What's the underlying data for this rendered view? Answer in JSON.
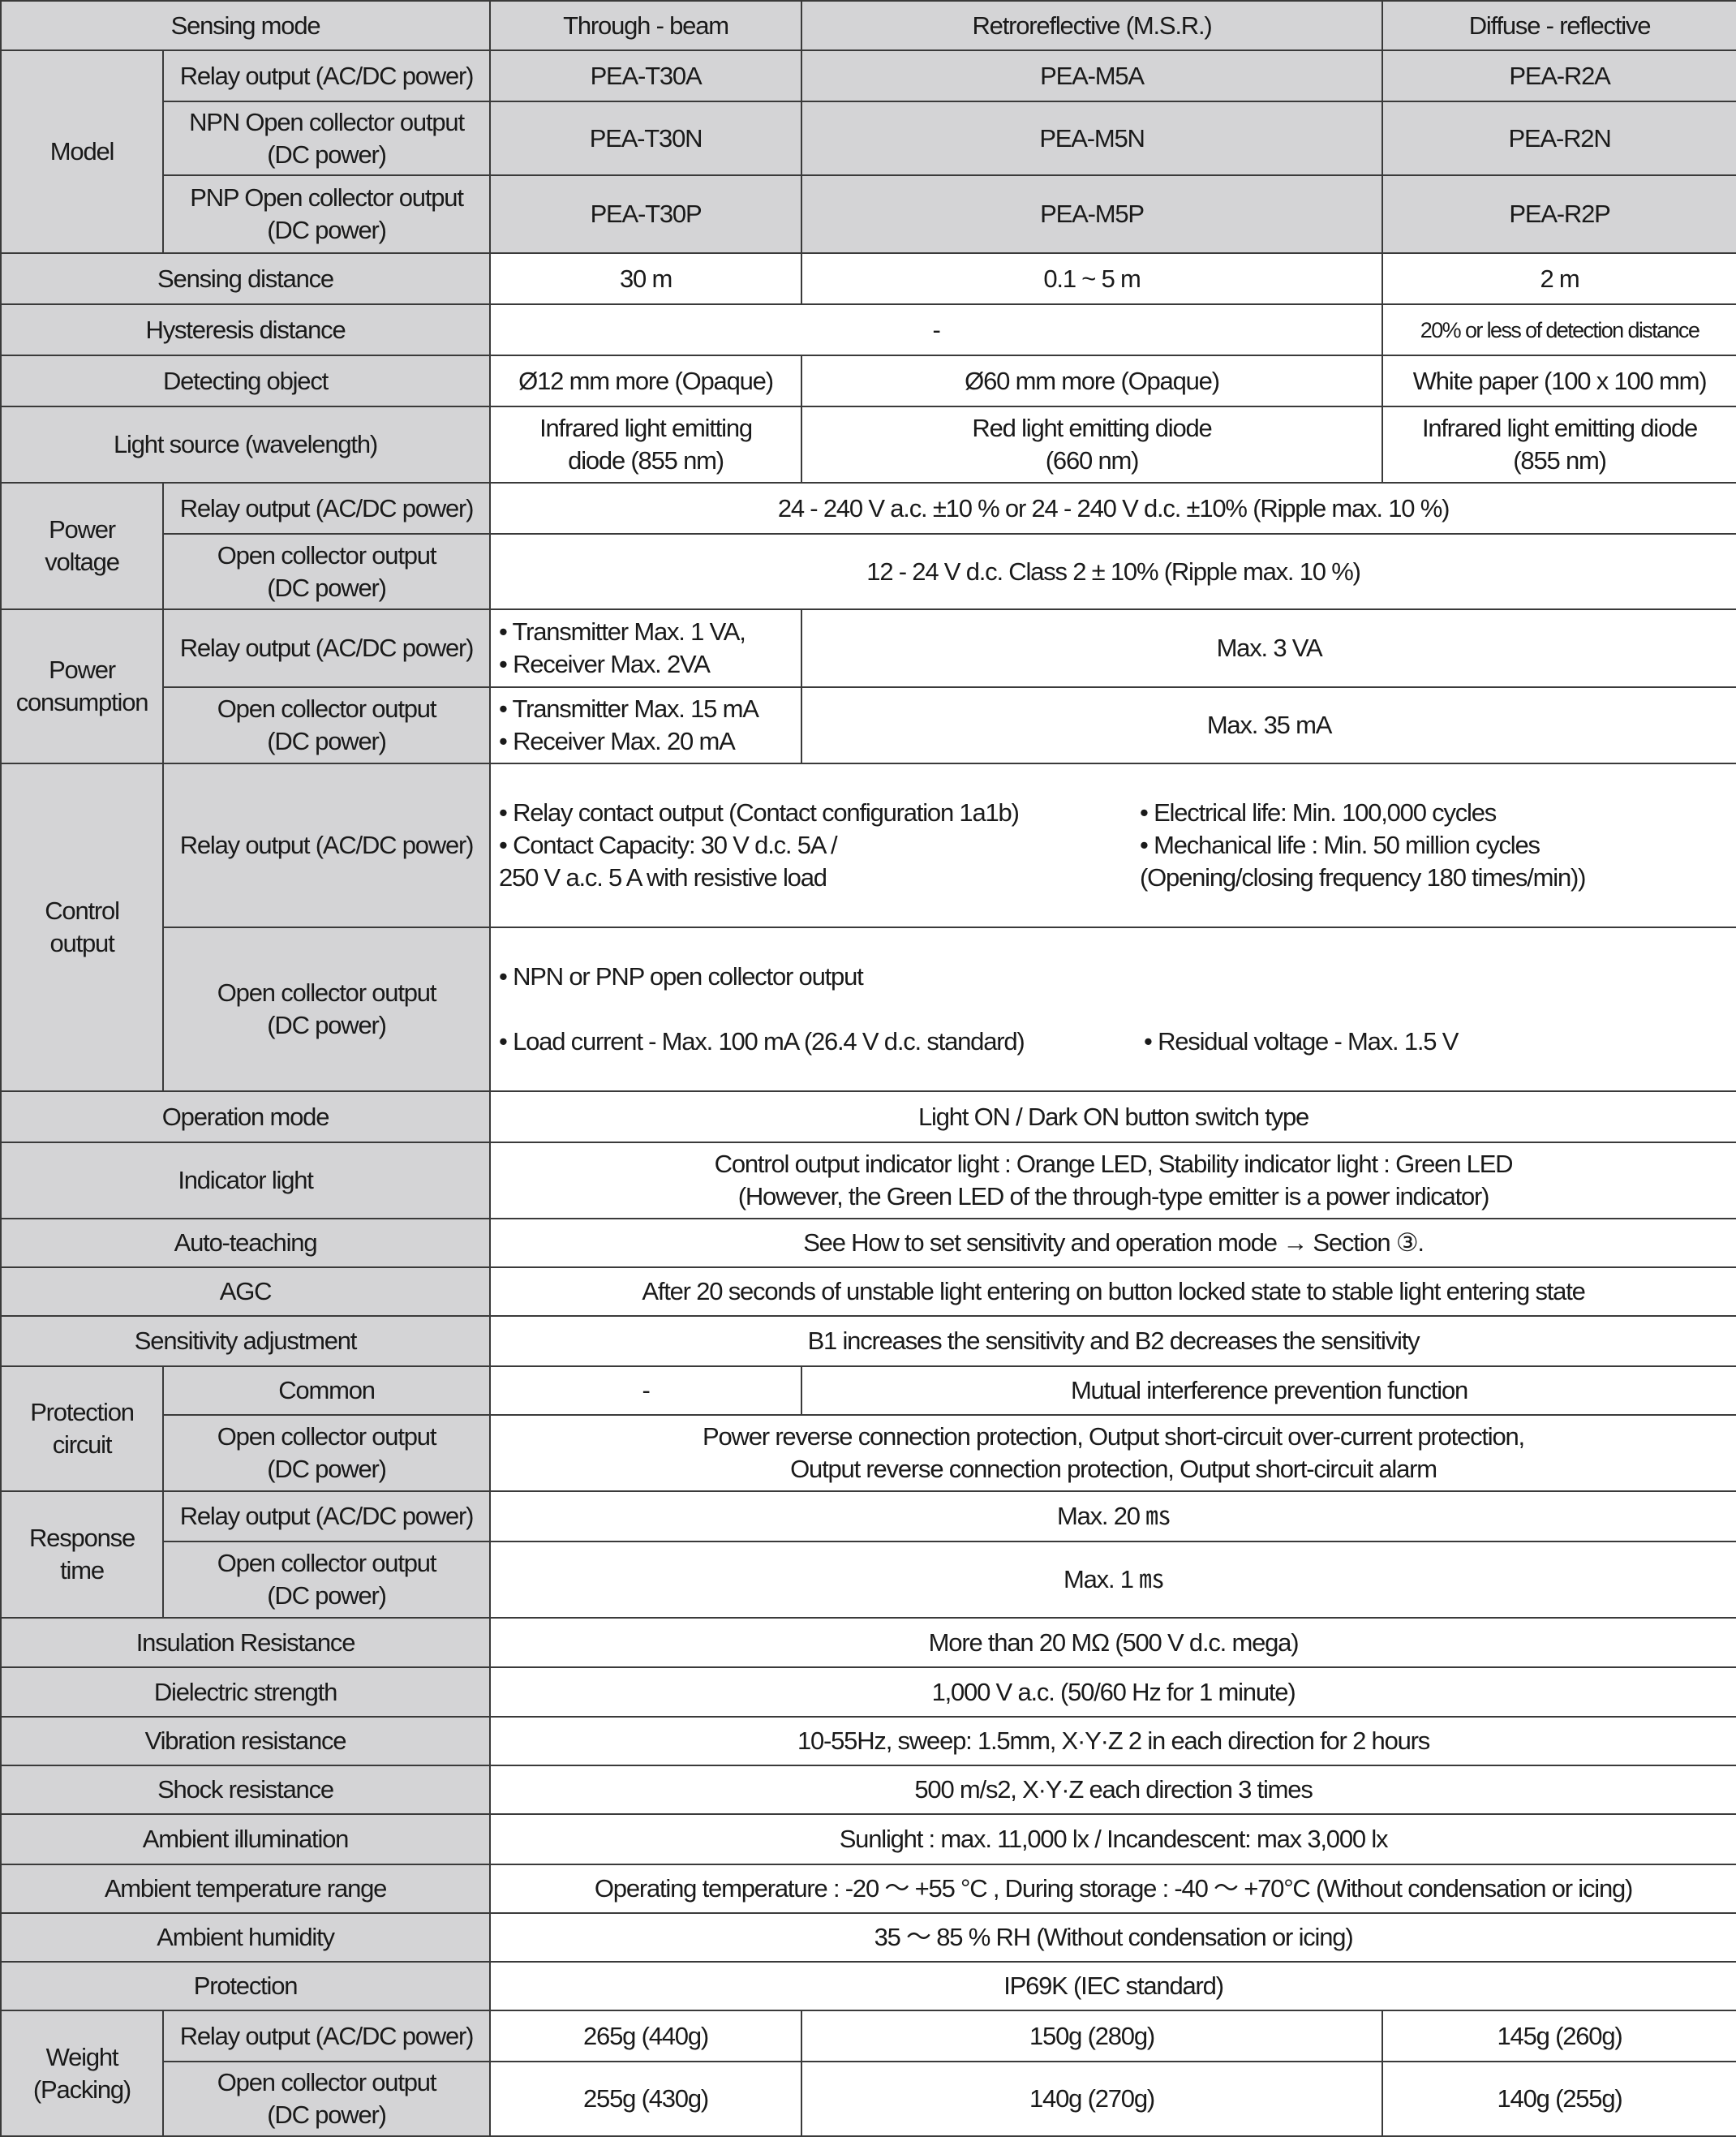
{
  "colors": {
    "label_bg": "#d4d4d6",
    "value_bg": "#ffffff",
    "border": "#3a3a3a"
  },
  "header": {
    "label": "Sensing mode",
    "cols": [
      "Through - beam",
      "Retroreflective (M.S.R.)",
      "Diffuse - reflective"
    ]
  },
  "model": {
    "label": "Model",
    "relay": "Relay output (AC/DC power)",
    "npn": "NPN Open collector output\n(DC power)",
    "pnp": "PNP Open collector output\n(DC power)",
    "relay_vals": [
      "PEA-T30A",
      "PEA-M5A",
      "PEA-R2A"
    ],
    "npn_vals": [
      "PEA-T30N",
      "PEA-M5N",
      "PEA-R2N"
    ],
    "pnp_vals": [
      "PEA-T30P",
      "PEA-M5P",
      "PEA-R2P"
    ]
  },
  "sensing_distance": {
    "label": "Sensing distance",
    "vals": [
      "30 m",
      "0.1 ~ 5 m",
      "2 m"
    ]
  },
  "hysteresis": {
    "label": "Hysteresis distance",
    "val_tb_rr": "-",
    "val_diffuse": "20% or less of detection distance"
  },
  "detecting_object": {
    "label": "Detecting object",
    "vals": [
      "Ø12 mm more (Opaque)",
      "Ø60 mm more (Opaque)",
      "White paper (100 x 100 mm)"
    ]
  },
  "light_source": {
    "label": "Light source (wavelength)",
    "vals": [
      "Infrared light emitting\ndiode (855 nm)",
      "Red light emitting diode\n(660 nm)",
      "Infrared light emitting diode\n(855 nm)"
    ]
  },
  "power_voltage": {
    "label": "Power\nvoltage",
    "relay": "Relay output (AC/DC power)",
    "relay_val": "24 - 240 V a.c. ±10 % or 24 - 240 V d.c. ±10% (Ripple max. 10 %)",
    "oc": "Open collector output\n(DC power)",
    "oc_val": "12 - 24 V d.c. Class 2 ± 10% (Ripple max. 10 %)"
  },
  "power_consumption": {
    "label": "Power\nconsumption",
    "relay": "Relay output (AC/DC power)",
    "relay_tb": "• Transmitter Max. 1 VA,\n• Receiver Max. 2VA",
    "relay_other": "Max. 3 VA",
    "oc": "Open collector output\n(DC power)",
    "oc_tb": "• Transmitter Max. 15 mA\n• Receiver Max. 20 mA",
    "oc_other": "Max. 35 mA"
  },
  "control_output": {
    "label": "Control\noutput",
    "relay": "Relay output (AC/DC power)",
    "relay_left": "• Relay contact output (Contact configuration 1a1b)\n• Contact Capacity: 30 V d.c. 5A /\n  250 V a.c. 5 A with resistive load",
    "relay_right": "• Electrical life: Min. 100,000 cycles\n• Mechanical life : Min. 50 million cycles\n  (Opening/closing frequency 180 times/min))",
    "oc": "Open collector output\n(DC power)",
    "oc_line1": "• NPN or PNP open collector output",
    "oc_left": "• Load current - Max. 100 mA (26.4 V d.c. standard)",
    "oc_right": "• Residual voltage - Max. 1.5 V"
  },
  "operation_mode": {
    "label": "Operation mode",
    "val": "Light ON / Dark ON button switch type"
  },
  "indicator_light": {
    "label": "Indicator light",
    "val": "Control output indicator light : Orange LED, Stability indicator light : Green LED\n(However, the Green LED of the through-type emitter is a power indicator)"
  },
  "auto_teaching": {
    "label": "Auto-teaching",
    "val": "See How to set sensitivity and operation mode → Section ③."
  },
  "agc": {
    "label": "AGC",
    "val": "After 20 seconds of unstable light entering on button locked state to stable light entering state"
  },
  "sensitivity": {
    "label": "Sensitivity adjustment",
    "val": "B1 increases the sensitivity and B2 decreases the sensitivity"
  },
  "protection_circuit": {
    "label": "Protection\ncircuit",
    "common": "Common",
    "common_tb": "-",
    "common_other": "Mutual interference prevention function",
    "oc": "Open collector output\n(DC power)",
    "oc_val": "Power reverse connection protection, Output short-circuit over-current protection,\nOutput reverse connection protection, Output short-circuit alarm"
  },
  "response_time": {
    "label": "Response\ntime",
    "relay": "Relay output (AC/DC power)",
    "relay_val": "Max. 20 ㎳",
    "oc": "Open collector output\n(DC power)",
    "oc_val": "Max. 1 ㎳"
  },
  "insulation": {
    "label": "Insulation Resistance",
    "val": "More than 20 MΩ (500 V d.c. mega)"
  },
  "dielectric": {
    "label": "Dielectric strength",
    "val": "1,000 V a.c. (50/60 Hz for 1 minute)"
  },
  "vibration": {
    "label": "Vibration resistance",
    "val": "10-55Hz, sweep: 1.5mm, X·Y·Z 2 in each direction for 2 hours"
  },
  "shock": {
    "label": "Shock resistance",
    "val": "500 m/s2, X·Y·Z each direction 3 times"
  },
  "illumination": {
    "label": "Ambient illumination",
    "val": "Sunlight : max. 11,000 lx / Incandescent: max 3,000 lx"
  },
  "temperature": {
    "label": "Ambient temperature range",
    "val": "Operating temperature : -20 ～ +55 °C , During storage : -40 ～ +70°C (Without condensation or icing)"
  },
  "humidity": {
    "label": "Ambient humidity",
    "val": "35 ～ 85 % RH (Without condensation or icing)"
  },
  "protection": {
    "label": "Protection",
    "val": "IP69K (IEC standard)"
  },
  "weight": {
    "label": "Weight\n(Packing)",
    "relay": "Relay output (AC/DC power)",
    "relay_vals": [
      "265g (440g)",
      "150g (280g)",
      "145g (260g)"
    ],
    "oc": "Open collector output\n(DC power)",
    "oc_vals": [
      "255g (430g)",
      "140g (270g)",
      "140g (255g)"
    ]
  }
}
